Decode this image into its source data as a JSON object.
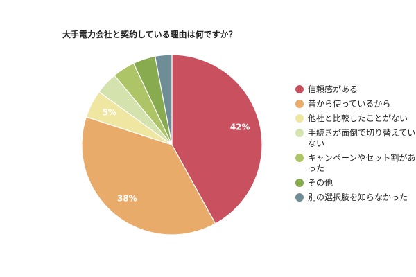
{
  "chart_data": {
    "type": "pie",
    "title": "大手電力会社と契約している理由は何ですか？",
    "slices": [
      {
        "label": "信頼感がある",
        "value": 42,
        "color": "#c9505f",
        "data_label": "42%"
      },
      {
        "label": "昔から使っているから",
        "value": 38,
        "color": "#e8ab6a",
        "data_label": "38%"
      },
      {
        "label": "他社と比較したことがない",
        "value": 5,
        "color": "#efe6a2",
        "data_label": "5%"
      },
      {
        "label": "手続きが面倒で切り替えていない",
        "value": 4,
        "color": "#d4e2ae",
        "data_label": ""
      },
      {
        "label": "キャンペーンやセット割があった",
        "value": 4,
        "color": "#adc566",
        "data_label": ""
      },
      {
        "label": "その他",
        "value": 4,
        "color": "#88ab4f",
        "data_label": ""
      },
      {
        "label": "別の選択肢を知らなかった",
        "value": 3,
        "color": "#6f8d96",
        "data_label": ""
      }
    ],
    "legend_position": "right",
    "start_angle": "12 o'clock, clockwise"
  }
}
